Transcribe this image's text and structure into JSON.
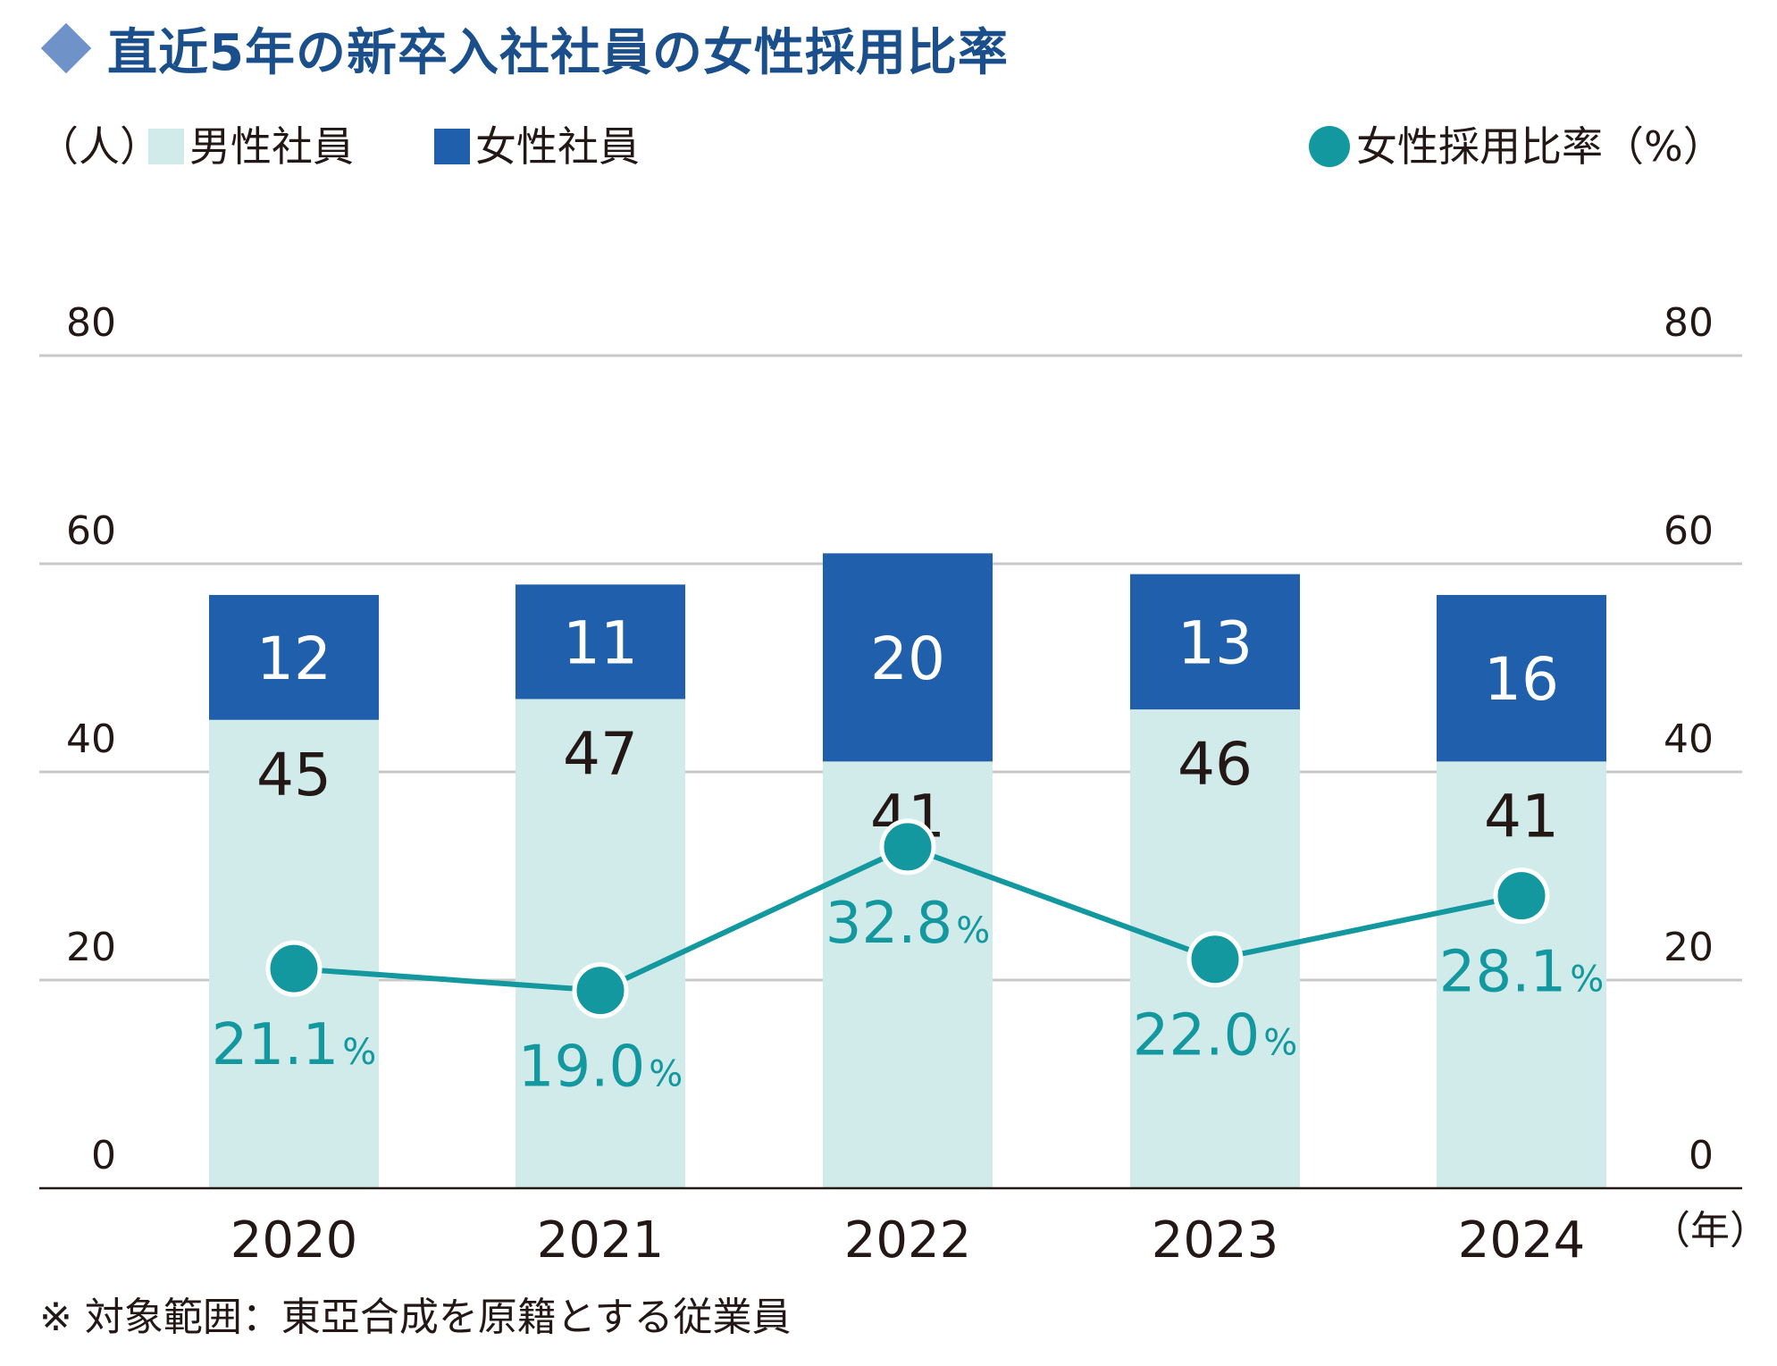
{
  "title": "直近5年の新卒入社社員の女性採用比率",
  "legend": {
    "left_unit": "（人）",
    "male_label": "男性社員",
    "female_label": "女性社員",
    "ratio_label": "女性採用比率（%）"
  },
  "x_unit": "（年）",
  "footnote": "※ 対象範囲：東亞合成を原籍とする従業員",
  "colors": {
    "male": "#d1eaea",
    "female": "#1f5fab",
    "ratio": "#12989e",
    "title": "#1a4f8b",
    "grid": "#c8c8c8",
    "text": "#231815"
  },
  "chart_data": {
    "type": "bar",
    "stacked": true,
    "categories": [
      "2020",
      "2021",
      "2022",
      "2023",
      "2024"
    ],
    "series": [
      {
        "name": "男性社員",
        "values": [
          45,
          47,
          41,
          46,
          41
        ]
      },
      {
        "name": "女性社員",
        "values": [
          12,
          11,
          20,
          13,
          16
        ]
      }
    ],
    "line_series": {
      "name": "女性採用比率",
      "values": [
        21.1,
        19.0,
        32.8,
        22.0,
        28.1
      ],
      "labels": [
        "21.1",
        "19.0",
        "32.8",
        "22.0",
        "28.1"
      ],
      "unit": "%"
    },
    "y_left": {
      "ylim": [
        0,
        80
      ],
      "ticks": [
        "0",
        "20",
        "40",
        "60",
        "80"
      ]
    },
    "y_right": {
      "ylim": [
        0,
        80
      ],
      "ticks": [
        "0",
        "20",
        "40",
        "60",
        "80"
      ]
    },
    "grid": true,
    "legend_position": "top"
  }
}
